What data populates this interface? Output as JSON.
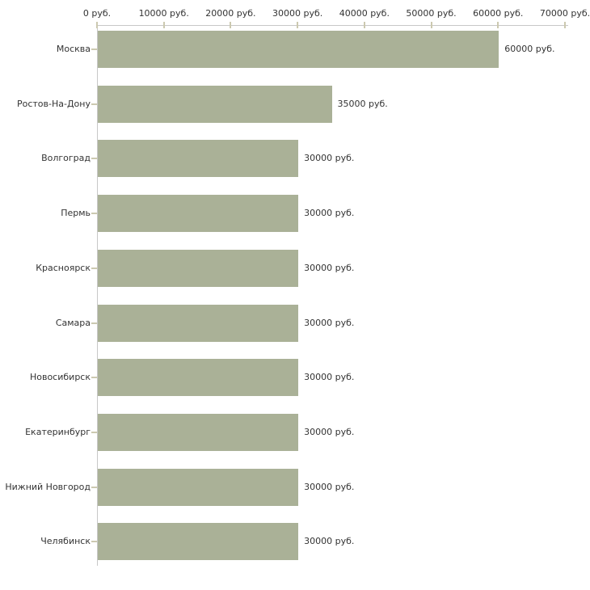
{
  "chart_data": {
    "type": "bar",
    "orientation": "horizontal",
    "title": "",
    "categories": [
      "Москва",
      "Ростов-На-Дону",
      "Волгоград",
      "Пермь",
      "Красноярск",
      "Самара",
      "Новосибирск",
      "Екатеринбург",
      "Нижний Новгород",
      "Челябинск"
    ],
    "values": [
      60000,
      35000,
      30000,
      30000,
      30000,
      30000,
      30000,
      30000,
      30000,
      30000
    ],
    "bar_value_labels": [
      "60000 руб.",
      "35000 руб.",
      "30000 руб.",
      "30000 руб.",
      "30000 руб.",
      "30000 руб.",
      "30000 руб.",
      "30000 руб.",
      "30000 руб.",
      "30000 руб."
    ],
    "x_axis": {
      "unit": "руб.",
      "tick_values": [
        0,
        10000,
        20000,
        30000,
        40000,
        50000,
        60000,
        70000
      ],
      "tick_labels": [
        "0 руб.",
        "10000 руб.",
        "20000 руб.",
        "30000 руб.",
        "40000 руб.",
        "50000 руб.",
        "60000 руб.",
        "70000 руб."
      ]
    },
    "xlim": [
      0,
      70000
    ],
    "grid": false,
    "legend": false,
    "axis_position": "top",
    "colors": {
      "bar": "#aab197",
      "axis_line": "#c8c8c8",
      "tick_mark": "#ccc9b0",
      "label_text": "#333333",
      "background": "#ffffff"
    }
  }
}
